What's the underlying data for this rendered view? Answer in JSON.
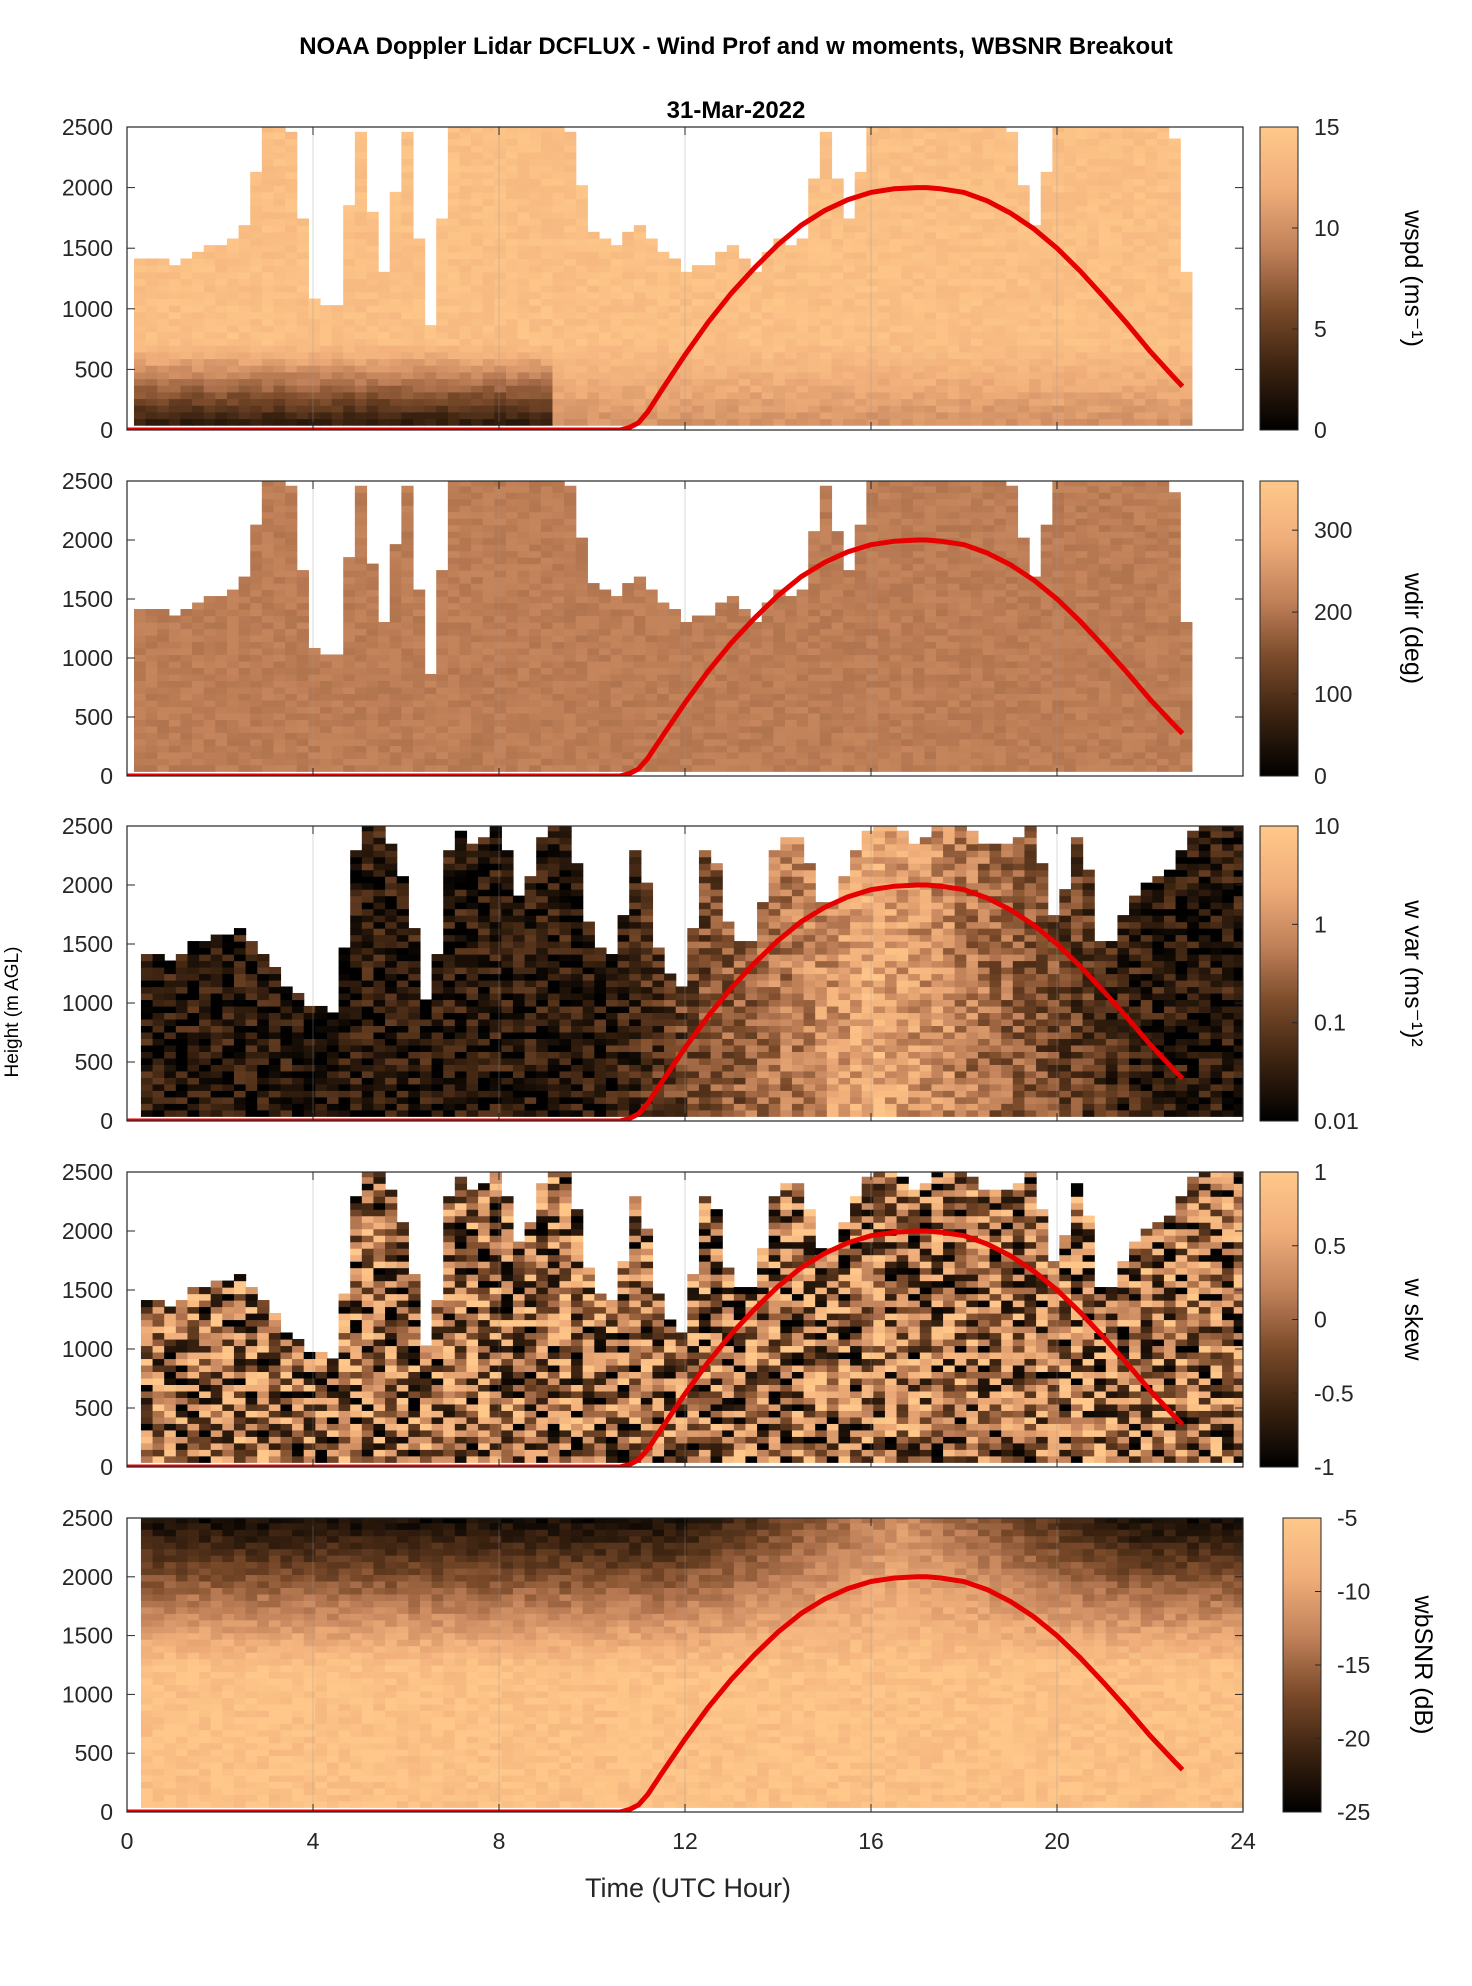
{
  "figure": {
    "title": "NOAA Doppler Lidar DCFLUX - Wind Prof and w moments, WBSNR Breakout",
    "date": "31-Mar-2022",
    "ylabel": "Height (m AGL)",
    "xlabel": "Time (UTC Hour)"
  },
  "chart_data": {
    "type": "heatmap",
    "x_range": [
      0,
      24
    ],
    "x_ticks": [
      0,
      4,
      8,
      12,
      16,
      20,
      24
    ],
    "y_range": [
      0,
      2500
    ],
    "y_ticks": [
      0,
      500,
      1000,
      1500,
      2000,
      2500
    ],
    "grid": true,
    "colormap": [
      "#000000",
      "#3a2210",
      "#7a4a2a",
      "#c2825a",
      "#f0ae7a",
      "#ffc88a"
    ],
    "overlay_curve_color": "#e60000",
    "overlay_curve": {
      "x": [
        0,
        10.6,
        10.8,
        11,
        11.2,
        11.5,
        12,
        12.5,
        13,
        13.5,
        14,
        14.5,
        15,
        15.5,
        16,
        16.5,
        17,
        17.2,
        17.5,
        18,
        18.5,
        19,
        19.5,
        20,
        20.5,
        21,
        21.5,
        22,
        22.5,
        22.7
      ],
      "y": [
        0,
        0,
        20,
        60,
        150,
        330,
        620,
        890,
        1130,
        1340,
        1530,
        1690,
        1810,
        1900,
        1960,
        1990,
        2000,
        2000,
        1990,
        1960,
        1890,
        1790,
        1660,
        1500,
        1310,
        1100,
        880,
        650,
        440,
        360
      ]
    },
    "panels": [
      {
        "variable": "wspd",
        "colorbar_label": "wspd (ms⁻¹)",
        "clim": [
          0,
          15
        ],
        "colorbar_ticks": [
          "0",
          "5",
          "10",
          "15"
        ],
        "time_range": [
          0.15,
          22.7
        ],
        "profile_top_x": [
          0,
          0.5,
          1,
          1.5,
          2,
          2.5,
          3,
          3.5,
          4,
          4.5,
          5,
          5.5,
          6,
          6.5,
          7,
          7.5,
          8,
          8.5,
          9,
          9.5,
          10,
          10.5,
          11,
          11.5,
          12,
          12.5,
          13,
          13.5,
          14,
          14.5,
          15,
          15.5,
          16,
          16.5,
          17,
          17.5,
          18,
          18.5,
          19,
          19.5,
          20,
          20.5,
          21,
          21.5,
          22,
          22.5,
          22.7
        ],
        "profile_top_y": [
          1400,
          1400,
          1350,
          1450,
          1500,
          1600,
          2500,
          2500,
          1050,
          950,
          2500,
          1200,
          2500,
          750,
          2500,
          2500,
          2500,
          2500,
          2500,
          2500,
          1600,
          1500,
          1700,
          1450,
          1300,
          1350,
          1500,
          1250,
          1550,
          1500,
          2500,
          1650,
          2500,
          2500,
          2500,
          2500,
          2500,
          2500,
          2500,
          1600,
          2500,
          2500,
          2500,
          2500,
          2500,
          2500,
          1300
        ],
        "typical_value": 14
      },
      {
        "variable": "wdir",
        "colorbar_label": "wdir (deg)",
        "clim": [
          0,
          360
        ],
        "colorbar_ticks": [
          "0",
          "100",
          "200",
          "300"
        ],
        "time_range": [
          0.15,
          22.7
        ],
        "profile_top_x": [
          0,
          0.5,
          1,
          1.5,
          2,
          2.5,
          3,
          3.5,
          4,
          4.5,
          5,
          5.5,
          6,
          6.5,
          7,
          7.5,
          8,
          8.5,
          9,
          9.5,
          10,
          10.5,
          11,
          11.5,
          12,
          12.5,
          13,
          13.5,
          14,
          14.5,
          15,
          15.5,
          16,
          16.5,
          17,
          17.5,
          18,
          18.5,
          19,
          19.5,
          20,
          20.5,
          21,
          21.5,
          22,
          22.5,
          22.7
        ],
        "profile_top_y": [
          1400,
          1400,
          1350,
          1450,
          1500,
          1600,
          2500,
          2500,
          1050,
          950,
          2500,
          1200,
          2500,
          750,
          2500,
          2500,
          2500,
          2500,
          2500,
          2500,
          1600,
          1500,
          1700,
          1450,
          1300,
          1350,
          1500,
          1250,
          1550,
          1500,
          2500,
          1650,
          2500,
          2500,
          2500,
          2500,
          2500,
          2500,
          2500,
          1600,
          2500,
          2500,
          2500,
          2500,
          2500,
          2500,
          1300
        ],
        "typical_value": 210
      },
      {
        "variable": "w var",
        "colorbar_label": "w var (ms⁻¹)²",
        "clim": [
          0.01,
          10
        ],
        "log_scale": true,
        "colorbar_ticks": [
          "0.01",
          "0.1",
          "1",
          "10"
        ],
        "time_range": [
          0.3,
          23.9
        ],
        "profile_top_x": [
          0,
          0.5,
          1,
          1.5,
          2,
          2.5,
          3,
          3.5,
          4,
          4.5,
          5,
          5.5,
          6,
          6.5,
          7,
          7.5,
          8,
          8.5,
          9,
          9.5,
          10,
          10.5,
          11,
          11.5,
          12,
          12.5,
          13,
          13.5,
          14,
          14.5,
          15,
          15.5,
          16,
          16.5,
          17,
          17.5,
          18,
          18.5,
          19,
          19.5,
          20,
          20.5,
          21,
          21.5,
          22,
          22.5,
          23,
          23.5,
          23.9
        ],
        "profile_top_y": [
          1450,
          1400,
          1350,
          1500,
          1550,
          1600,
          1350,
          1100,
          950,
          900,
          2500,
          2500,
          2000,
          800,
          2500,
          2300,
          2500,
          1800,
          2500,
          2500,
          1500,
          1350,
          2400,
          1300,
          1100,
          2500,
          1500,
          1500,
          2400,
          2400,
          1700,
          2100,
          2500,
          2500,
          2300,
          2500,
          2500,
          2300,
          2300,
          2500,
          1600,
          2500,
          1300,
          1800,
          2000,
          2100,
          2500,
          2500,
          2500
        ],
        "typical_value": 0.8
      },
      {
        "variable": "w skew",
        "colorbar_label": "w skew",
        "clim": [
          -1,
          1
        ],
        "colorbar_ticks": [
          "-1",
          "-0.5",
          "0",
          "0.5",
          "1"
        ],
        "time_range": [
          0.3,
          23.9
        ],
        "profile_top_x": [
          0,
          0.5,
          1,
          1.5,
          2,
          2.5,
          3,
          3.5,
          4,
          4.5,
          5,
          5.5,
          6,
          6.5,
          7,
          7.5,
          8,
          8.5,
          9,
          9.5,
          10,
          10.5,
          11,
          11.5,
          12,
          12.5,
          13,
          13.5,
          14,
          14.5,
          15,
          15.5,
          16,
          16.5,
          17,
          17.5,
          18,
          18.5,
          19,
          19.5,
          20,
          20.5,
          21,
          21.5,
          22,
          22.5,
          23,
          23.5,
          23.9
        ],
        "profile_top_y": [
          1450,
          1400,
          1350,
          1500,
          1550,
          1600,
          1350,
          1100,
          950,
          900,
          2500,
          2500,
          2000,
          800,
          2500,
          2300,
          2500,
          1800,
          2500,
          2500,
          1500,
          1350,
          2400,
          1300,
          1100,
          2500,
          1500,
          1500,
          2400,
          2400,
          1700,
          2100,
          2500,
          2500,
          2300,
          2500,
          2500,
          2300,
          2300,
          2500,
          1600,
          2500,
          1300,
          1800,
          2000,
          2100,
          2500,
          2500,
          2500
        ],
        "typical_value": 0
      },
      {
        "variable": "wbSNR",
        "colorbar_label": "wbSNR (dB)",
        "clim": [
          -25,
          -5
        ],
        "colorbar_ticks": [
          "-25",
          "-20",
          "-15",
          "-10",
          "-5"
        ],
        "time_range": [
          0.3,
          23.9
        ],
        "profile_top_x": [
          0,
          24
        ],
        "profile_top_y": [
          2500,
          2500
        ],
        "typical_value": -6
      }
    ]
  }
}
